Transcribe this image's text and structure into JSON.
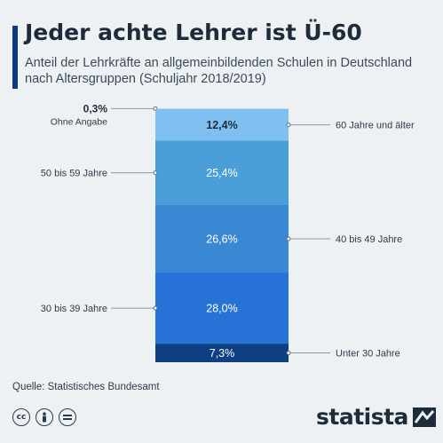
{
  "header": {
    "title": "Jeder achte Lehrer ist Ü-60",
    "subtitle": "Anteil der Lehrkräfte an allgemeinbildenden Schulen in Deutschland nach Altersgruppen  (Schuljahr 2018/2019)"
  },
  "chart_data": {
    "type": "bar",
    "stacked": true,
    "unit": "%",
    "categories": [
      "Ohne Angabe",
      "60 Jahre und älter",
      "50 bis 59 Jahre",
      "40 bis 49 Jahre",
      "30 bis 39 Jahre",
      "Unter 30 Jahre"
    ],
    "values": [
      0.3,
      12.4,
      25.4,
      26.6,
      28.0,
      7.3
    ],
    "value_labels": [
      "0,3%",
      "12,4%",
      "25,4%",
      "26,6%",
      "28,0%",
      "7,3%"
    ],
    "label_sides": [
      "left",
      "right",
      "left",
      "right",
      "left",
      "right"
    ],
    "colors": [
      "#b8dcf7",
      "#7fc0f0",
      "#4a9fd8",
      "#3a88d4",
      "#2672d6",
      "#0e3f82"
    ],
    "legend": "none",
    "grid": false
  },
  "footer": {
    "source": "Quelle: Statistisches Bundesamt",
    "license_icons": [
      "cc-icon",
      "person-icon",
      "equals-icon"
    ],
    "brand": "statista"
  }
}
